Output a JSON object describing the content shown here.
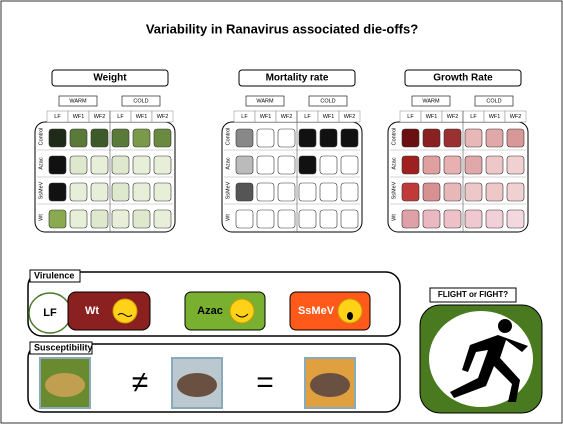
{
  "title": "Variability in Ranavirus associated die-offs?",
  "grids": [
    {
      "label": "Weight",
      "warm": "WARM",
      "cold": "COLD",
      "columns": [
        "LF",
        "WF1",
        "WF2",
        "LF",
        "WF1",
        "WF2"
      ],
      "rows": [
        "Control",
        "Azac",
        "SsMeV",
        "Wt"
      ],
      "colors": [
        [
          "#1f2a18",
          "#5a7a3a",
          "#3f5a2a",
          "#5a7a3a",
          "#7a9a4a",
          "#6a8a40"
        ],
        [
          "#111111",
          "#dde8cc",
          "#e8efd8",
          "#dde8cc",
          "#e8efd8",
          "#e8efd8"
        ],
        [
          "#111111",
          "#e8efd8",
          "#e8efd8",
          "#dde8cc",
          "#e8efd8",
          "#e8efd8"
        ],
        [
          "#8aaa50",
          "#e8efd8",
          "#dde8cc",
          "#e8efd8",
          "#dde8cc",
          "#e8efd8"
        ]
      ]
    },
    {
      "label": "Mortality rate",
      "warm": "WARM",
      "cold": "COLD",
      "columns": [
        "LF",
        "WF1",
        "WF2",
        "LF",
        "WF1",
        "WF2"
      ],
      "rows": [
        "Control",
        "Azac",
        "SsMeV",
        "Wt"
      ],
      "colors": [
        [
          "#888888",
          "#ffffff",
          "#ffffff",
          "#111111",
          "#111111",
          "#111111"
        ],
        [
          "#bbbbbb",
          "#ffffff",
          "#ffffff",
          "#111111",
          "#ffffff",
          "#ffffff"
        ],
        [
          "#555555",
          "#ffffff",
          "#ffffff",
          "#ffffff",
          "#ffffff",
          "#ffffff"
        ],
        [
          "#ffffff",
          "#ffffff",
          "#ffffff",
          "#ffffff",
          "#ffffff",
          "#ffffff"
        ]
      ]
    },
    {
      "label": "Growth Rate",
      "warm": "WARM",
      "cold": "COLD",
      "columns": [
        "LF",
        "WF1",
        "WF2",
        "LF",
        "WF1",
        "WF2"
      ],
      "rows": [
        "Control",
        "Azac",
        "SsMeV",
        "Wt"
      ],
      "colors": [
        [
          "#6a1010",
          "#8a2020",
          "#9a3030",
          "#e8b8b8",
          "#e0a8a8",
          "#d89898"
        ],
        [
          "#a02020",
          "#e0a0a0",
          "#e8b0b0",
          "#e0a8a8",
          "#eec8c8",
          "#f0d0d0"
        ],
        [
          "#c03a3a",
          "#d89090",
          "#e8b8b8",
          "#eec8c8",
          "#eec8c8",
          "#f0d0d0"
        ],
        [
          "#e0a0a8",
          "#eab8c0",
          "#eec0c8",
          "#f0c8d0",
          "#f2d0d8",
          "#f4d8e0"
        ]
      ]
    }
  ],
  "virulence": {
    "label": "Virulence",
    "items": [
      "LF",
      "Wt",
      "Azac",
      "SsMeV"
    ]
  },
  "susceptibility": {
    "label": "Susceptibility"
  },
  "flight": "FLIGHT or FIGHT?"
}
